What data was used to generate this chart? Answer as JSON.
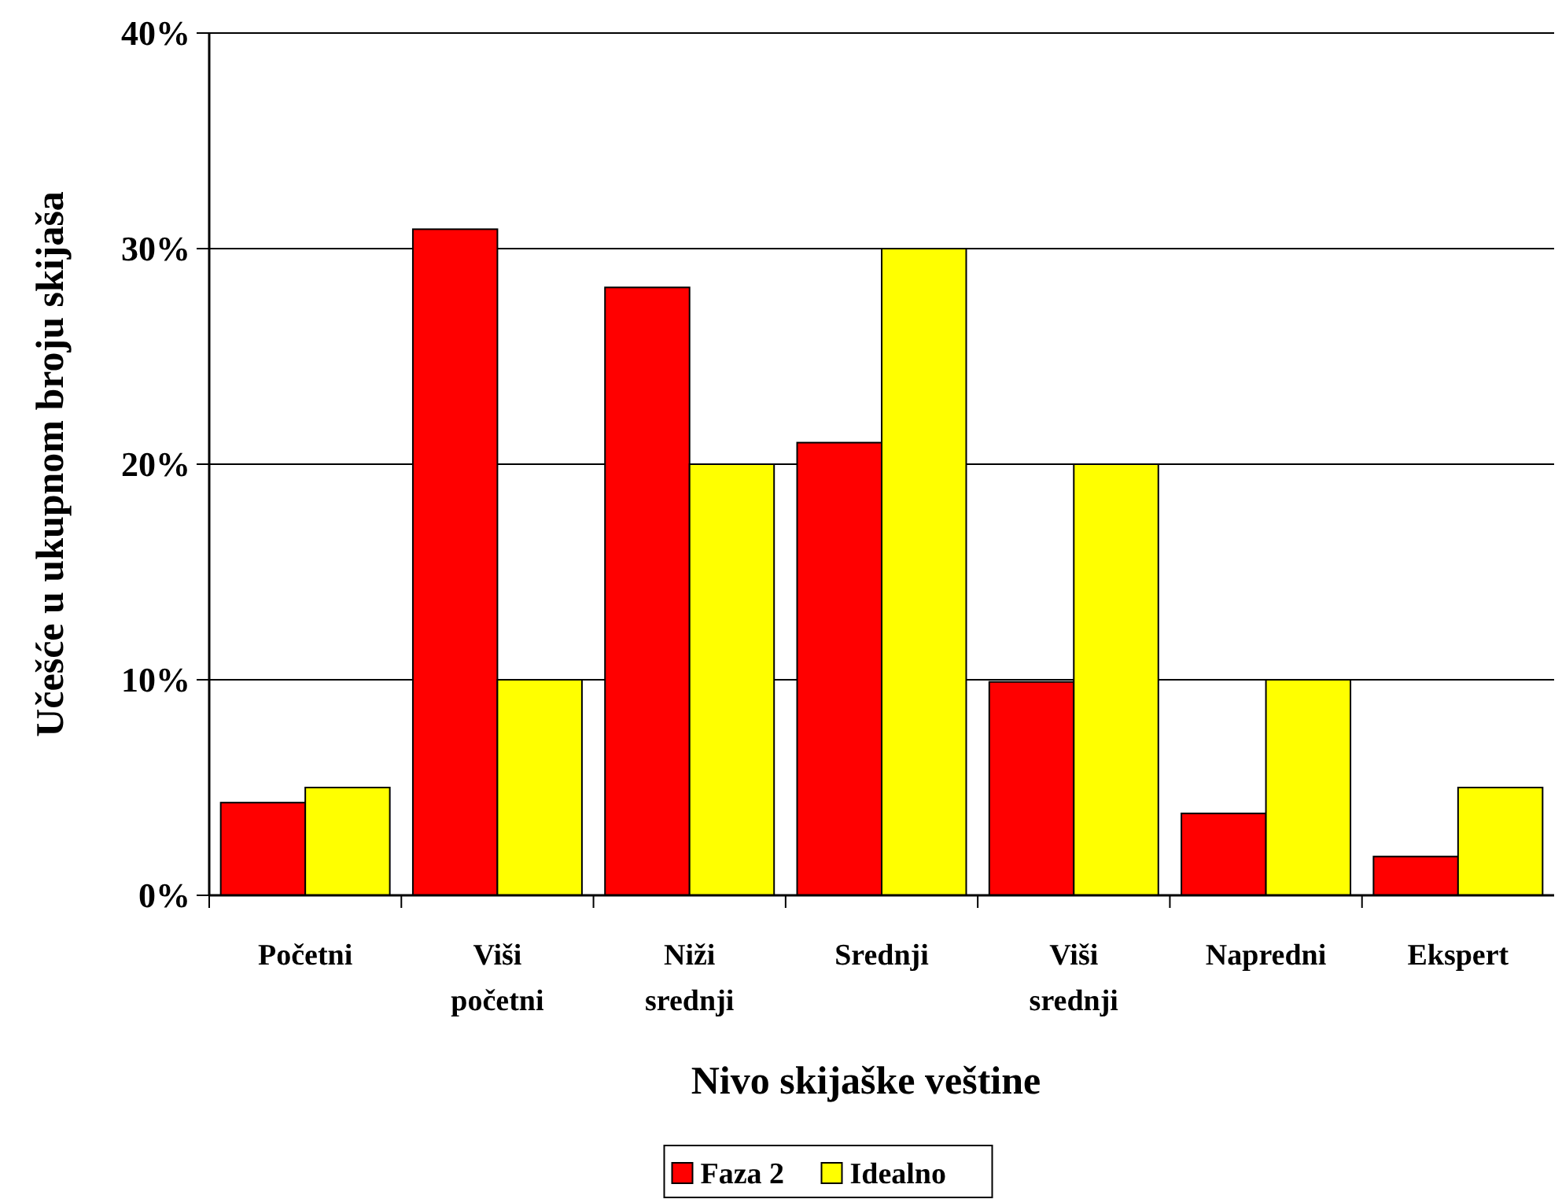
{
  "chart_data": {
    "type": "bar",
    "categories": [
      "Početni",
      "Viši početni",
      "Niži srednji",
      "Srednji",
      "Viši srednji",
      "Napredni",
      "Ekspert"
    ],
    "series": [
      {
        "name": "Faza 2",
        "color": "#ff0000",
        "values": [
          4.3,
          30.9,
          28.2,
          21.0,
          9.9,
          3.8,
          1.8
        ]
      },
      {
        "name": "Idealno",
        "color": "#ffff00",
        "values": [
          5,
          10,
          20,
          30,
          20,
          10,
          5
        ]
      }
    ],
    "xlabel": "Nivo skijaške veštine",
    "ylabel": "Učešće u ukupnom broju skijaša",
    "ylim": [
      0,
      40
    ],
    "yticks": [
      {
        "value": 0,
        "label": "0%"
      },
      {
        "value": 10,
        "label": "10%"
      },
      {
        "value": 20,
        "label": "20%"
      },
      {
        "value": 30,
        "label": "30%"
      },
      {
        "value": 40,
        "label": "40%"
      }
    ],
    "grid": "y",
    "legend": "bottom"
  }
}
